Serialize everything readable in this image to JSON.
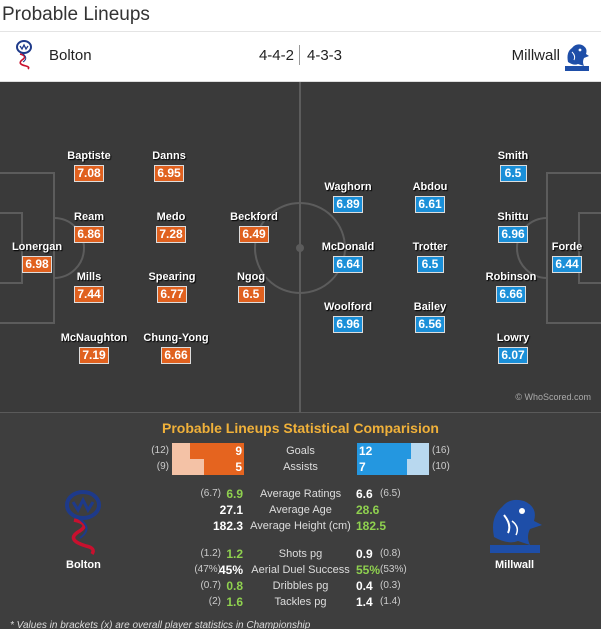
{
  "header": {
    "title": "Probable Lineups"
  },
  "teams": {
    "home": {
      "name": "Bolton",
      "formation": "4-4-2"
    },
    "away": {
      "name": "Millwall",
      "formation": "4-3-3"
    }
  },
  "players": {
    "home": [
      {
        "name": "Lonergan",
        "rating": "6.98"
      },
      {
        "name": "Baptiste",
        "rating": "7.08"
      },
      {
        "name": "Ream",
        "rating": "6.86"
      },
      {
        "name": "Mills",
        "rating": "7.44"
      },
      {
        "name": "McNaughton",
        "rating": "7.19"
      },
      {
        "name": "Danns",
        "rating": "6.95"
      },
      {
        "name": "Medo",
        "rating": "7.28"
      },
      {
        "name": "Spearing",
        "rating": "6.77"
      },
      {
        "name": "Chung-Yong",
        "rating": "6.66"
      },
      {
        "name": "Beckford",
        "rating": "6.49"
      },
      {
        "name": "Ngog",
        "rating": "6.5"
      }
    ],
    "away": [
      {
        "name": "Forde",
        "rating": "6.44"
      },
      {
        "name": "Smith",
        "rating": "6.5"
      },
      {
        "name": "Shittu",
        "rating": "6.96"
      },
      {
        "name": "Robinson",
        "rating": "6.66"
      },
      {
        "name": "Lowry",
        "rating": "6.07"
      },
      {
        "name": "Abdou",
        "rating": "6.61"
      },
      {
        "name": "Trotter",
        "rating": "6.5"
      },
      {
        "name": "Bailey",
        "rating": "6.56"
      },
      {
        "name": "Waghorn",
        "rating": "6.89"
      },
      {
        "name": "McDonald",
        "rating": "6.64"
      },
      {
        "name": "Woolford",
        "rating": "6.96"
      }
    ]
  },
  "credit": "© WhoScored.com",
  "stats": {
    "heading": "Probable Lineups Statistical Comparision",
    "bars": [
      {
        "label": "Goals",
        "home": "9",
        "home_bracket": "(12)",
        "away": "12",
        "away_bracket": "(16)",
        "home_fill": 0.75,
        "away_fill": 0.75
      },
      {
        "label": "Assists",
        "home": "5",
        "home_bracket": "(9)",
        "away": "7",
        "away_bracket": "(10)",
        "home_fill": 0.56,
        "away_fill": 0.7
      }
    ],
    "rows_a": [
      {
        "label": "Average Ratings",
        "home": "6.9",
        "home_bracket": "(6.7)",
        "away": "6.6",
        "away_bracket": "(6.5)",
        "home_color": "green",
        "away_color": "white"
      },
      {
        "label": "Average Age",
        "home": "27.1",
        "home_bracket": "",
        "away": "28.6",
        "away_bracket": "",
        "home_color": "white",
        "away_color": "green"
      },
      {
        "label": "Average Height (cm)",
        "home": "182.3",
        "home_bracket": "",
        "away": "182.5",
        "away_bracket": "",
        "home_color": "white",
        "away_color": "green"
      }
    ],
    "rows_b": [
      {
        "label": "Shots pg",
        "home": "1.2",
        "home_bracket": "(1.2)",
        "away": "0.9",
        "away_bracket": "(0.8)",
        "home_color": "green",
        "away_color": "white"
      },
      {
        "label": "Aerial Duel Success",
        "home": "45%",
        "home_bracket": "(47%)",
        "away": "55%",
        "away_bracket": "(53%)",
        "home_color": "white",
        "away_color": "green"
      },
      {
        "label": "Dribbles pg",
        "home": "0.8",
        "home_bracket": "(0.7)",
        "away": "0.4",
        "away_bracket": "(0.3)",
        "home_color": "green",
        "away_color": "white"
      },
      {
        "label": "Tackles pg",
        "home": "1.6",
        "home_bracket": "(2)",
        "away": "1.4",
        "away_bracket": "(1.4)",
        "home_color": "green",
        "away_color": "white"
      }
    ],
    "footnote": "* Values in brackets (x) are overall player statistics in Championship"
  },
  "colors": {
    "home": "#e0611f",
    "away": "#1a8fd8",
    "heading": "#f0b13a",
    "pitch": "#3a3a3a"
  }
}
